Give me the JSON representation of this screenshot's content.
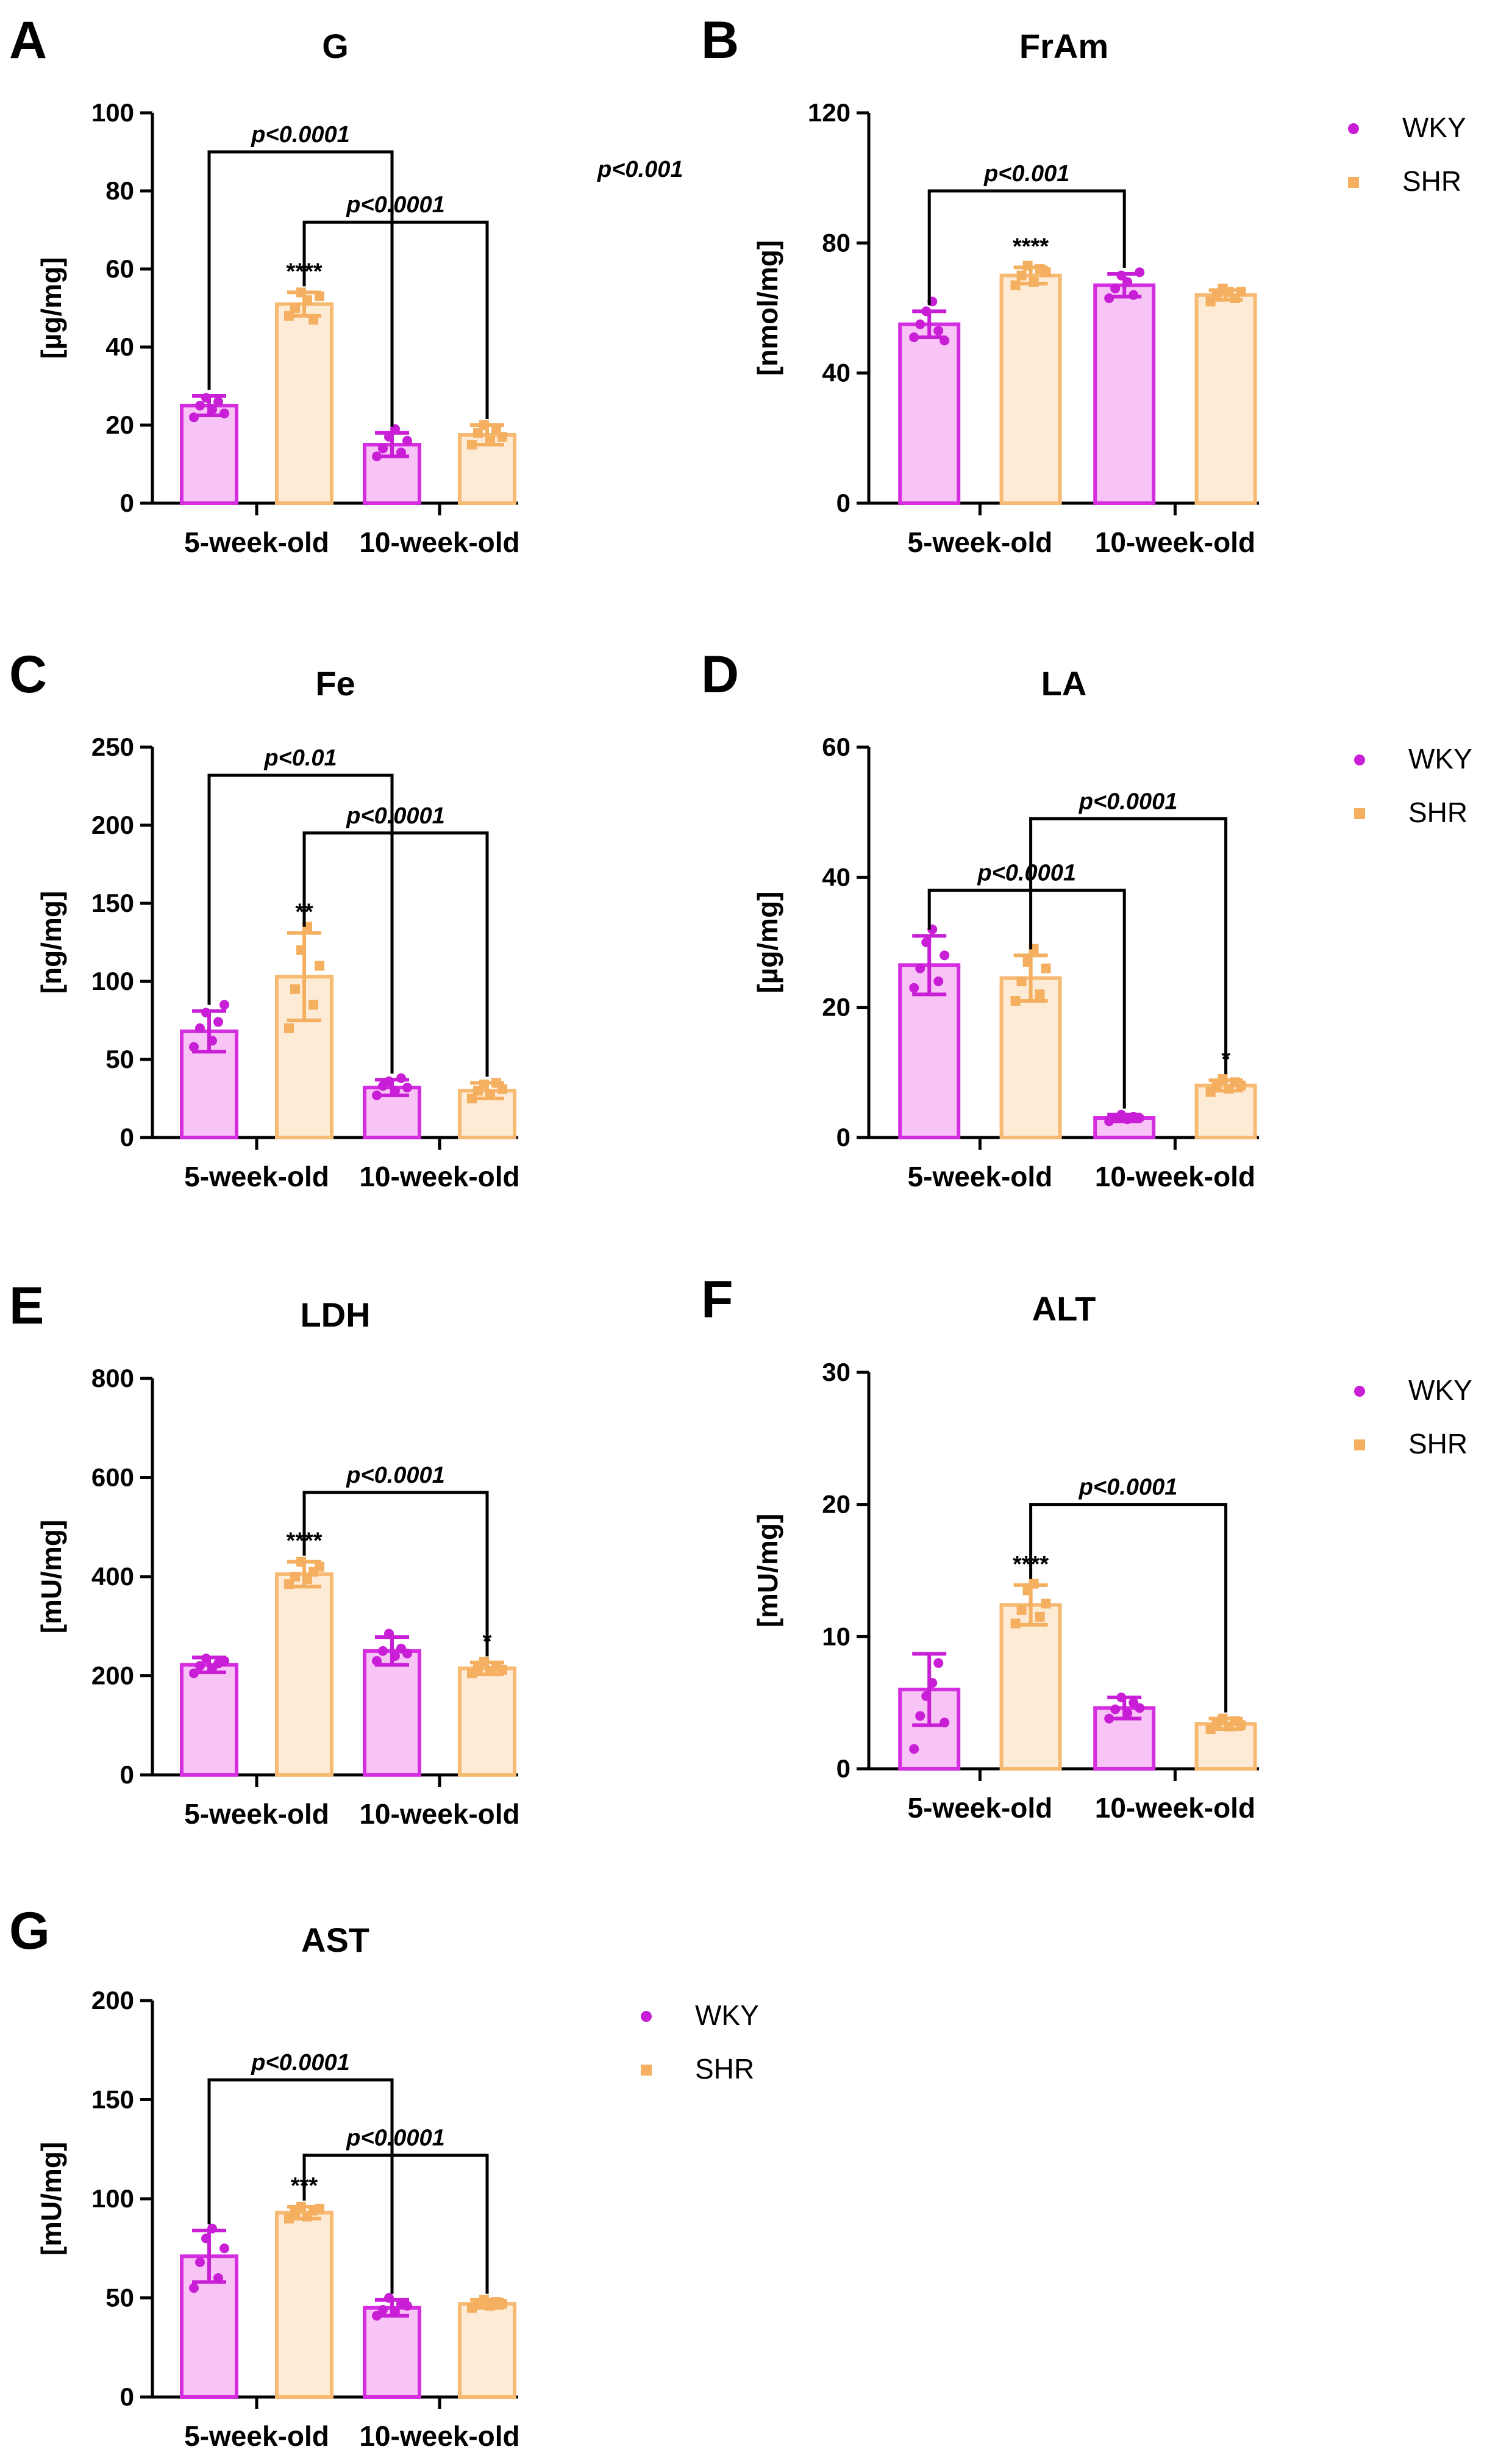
{
  "colors": {
    "WKY": {
      "stroke": "#d42ee0",
      "fill": "#f8c4f6",
      "marker": "#c81fd6"
    },
    "SHR": {
      "stroke": "#f6ba72",
      "fill": "#fdebd6",
      "marker": "#f4b060"
    },
    "axis": "#000000"
  },
  "legend": {
    "entries": [
      "WKY",
      "SHR"
    ]
  },
  "stray_text": "p<0.001",
  "chart_data": [
    {
      "panel": "A",
      "title": "G",
      "ylabel": "[µg/mg]",
      "type": "bar",
      "categories": [
        "5-week-old",
        "10-week-old"
      ],
      "ylim": [
        0,
        100
      ],
      "yticks": [
        "0",
        "20",
        "40",
        "60",
        "80",
        "100"
      ],
      "series": [
        {
          "name": "WKY",
          "values": [
            25,
            15
          ],
          "sd": [
            2.5,
            3
          ]
        },
        {
          "name": "SHR",
          "values": [
            51,
            17.5
          ],
          "sd": [
            3,
            2.5
          ]
        }
      ],
      "points": {
        "WKY": [
          [
            22,
            25,
            27,
            24,
            26,
            23
          ],
          [
            12,
            14,
            17,
            19,
            13,
            16
          ]
        ],
        "SHR": [
          [
            48,
            50,
            54,
            52,
            47,
            53
          ],
          [
            15,
            18,
            20,
            16,
            19,
            17
          ]
        ]
      },
      "stars": [
        {
          "series": "SHR",
          "cat": 0,
          "text": "****"
        }
      ],
      "brackets": [
        {
          "from": [
            0,
            "WKY"
          ],
          "to": [
            1,
            "WKY"
          ],
          "text": "p<0.0001",
          "y": 90
        },
        {
          "from": [
            0,
            "SHR"
          ],
          "to": [
            1,
            "SHR"
          ],
          "text": "p<0.0001",
          "y": 72
        }
      ]
    },
    {
      "panel": "B",
      "title": "FrAm",
      "ylabel": "[nmol/mg]",
      "type": "bar",
      "categories": [
        "5-week-old",
        "10-week-old"
      ],
      "ylim": [
        0,
        120
      ],
      "yticks": [
        "0",
        "40",
        "80",
        "120"
      ],
      "series": [
        {
          "name": "WKY",
          "values": [
            55,
            67
          ],
          "sd": [
            4,
            3.5
          ]
        },
        {
          "name": "SHR",
          "values": [
            70,
            64
          ],
          "sd": [
            2.5,
            1.5
          ]
        }
      ],
      "points": {
        "WKY": [
          [
            51,
            55,
            59,
            62,
            53,
            50
          ],
          [
            63,
            66,
            70,
            68,
            64,
            71
          ]
        ],
        "SHR": [
          [
            67,
            70,
            73,
            68,
            72,
            71
          ],
          [
            62,
            64,
            66,
            65,
            63,
            65
          ]
        ]
      },
      "stars": [
        {
          "series": "SHR",
          "cat": 0,
          "text": "****"
        }
      ],
      "brackets": [
        {
          "from": [
            0,
            "WKY"
          ],
          "to": [
            1,
            "WKY"
          ],
          "text": "p<0.001",
          "y": 96
        }
      ]
    },
    {
      "panel": "C",
      "title": "Fe",
      "ylabel": "[ng/mg]",
      "type": "bar",
      "categories": [
        "5-week-old",
        "10-week-old"
      ],
      "ylim": [
        0,
        250
      ],
      "yticks": [
        "0",
        "50",
        "100",
        "150",
        "200",
        "250"
      ],
      "series": [
        {
          "name": "WKY",
          "values": [
            68,
            32
          ],
          "sd": [
            13,
            5
          ]
        },
        {
          "name": "SHR",
          "values": [
            103,
            30
          ],
          "sd": [
            28,
            5
          ]
        }
      ],
      "points": {
        "WKY": [
          [
            58,
            70,
            80,
            62,
            74,
            85
          ],
          [
            27,
            33,
            36,
            30,
            38,
            32
          ]
        ],
        "SHR": [
          [
            70,
            95,
            120,
            135,
            85,
            110
          ],
          [
            25,
            30,
            34,
            28,
            35,
            31
          ]
        ]
      },
      "stars": [
        {
          "series": "SHR",
          "cat": 0,
          "text": "**"
        }
      ],
      "brackets": [
        {
          "from": [
            0,
            "WKY"
          ],
          "to": [
            1,
            "WKY"
          ],
          "text": "p<0.01",
          "y": 232
        },
        {
          "from": [
            0,
            "SHR"
          ],
          "to": [
            1,
            "SHR"
          ],
          "text": "p<0.0001",
          "y": 195
        }
      ]
    },
    {
      "panel": "D",
      "title": "LA",
      "ylabel": "[µg/mg]",
      "type": "bar",
      "categories": [
        "5-week-old",
        "10-week-old"
      ],
      "ylim": [
        0,
        60
      ],
      "yticks": [
        "0",
        "20",
        "40",
        "60"
      ],
      "series": [
        {
          "name": "WKY",
          "values": [
            26.5,
            3
          ],
          "sd": [
            4.5,
            0.5
          ]
        },
        {
          "name": "SHR",
          "values": [
            24.5,
            8
          ],
          "sd": [
            3.5,
            0.8
          ]
        }
      ],
      "points": {
        "WKY": [
          [
            23,
            26,
            30,
            32,
            24,
            28
          ],
          [
            2.5,
            3,
            3.5,
            2.8,
            3.2,
            3
          ]
        ],
        "SHR": [
          [
            21,
            24,
            27,
            29,
            22,
            26
          ],
          [
            7,
            8,
            9,
            7.5,
            8.5,
            8
          ]
        ]
      },
      "stars": [
        {
          "series": "SHR",
          "cat": 1,
          "text": "*"
        }
      ],
      "brackets": [
        {
          "from": [
            0,
            "WKY"
          ],
          "to": [
            1,
            "WKY"
          ],
          "text": "p<0.0001",
          "y": 38
        },
        {
          "from": [
            0,
            "SHR"
          ],
          "to": [
            1,
            "SHR"
          ],
          "text": "p<0.0001",
          "y": 49
        }
      ]
    },
    {
      "panel": "E",
      "title": "LDH",
      "ylabel": "[mU/mg]",
      "type": "bar",
      "categories": [
        "5-week-old",
        "10-week-old"
      ],
      "ylim": [
        0,
        800
      ],
      "yticks": [
        "0",
        "200",
        "400",
        "600",
        "800"
      ],
      "series": [
        {
          "name": "WKY",
          "values": [
            222,
            250
          ],
          "sd": [
            15,
            28
          ]
        },
        {
          "name": "SHR",
          "values": [
            405,
            215
          ],
          "sd": [
            25,
            12
          ]
        }
      ],
      "points": {
        "WKY": [
          [
            205,
            220,
            235,
            215,
            225,
            230
          ],
          [
            230,
            250,
            285,
            240,
            255,
            245
          ]
        ],
        "SHR": [
          [
            385,
            400,
            430,
            395,
            410,
            420
          ],
          [
            205,
            215,
            228,
            210,
            218,
            212
          ]
        ]
      },
      "stars": [
        {
          "series": "SHR",
          "cat": 0,
          "text": "****"
        },
        {
          "series": "SHR",
          "cat": 1,
          "text": "*"
        }
      ],
      "brackets": [
        {
          "from": [
            0,
            "SHR"
          ],
          "to": [
            1,
            "SHR"
          ],
          "text": "p<0.0001",
          "y": 570
        }
      ]
    },
    {
      "panel": "F",
      "title": "ALT",
      "ylabel": "[mU/mg]",
      "type": "bar",
      "categories": [
        "5-week-old",
        "10-week-old"
      ],
      "ylim": [
        0,
        30
      ],
      "yticks": [
        "0",
        "10",
        "20",
        "30"
      ],
      "series": [
        {
          "name": "WKY",
          "values": [
            6,
            4.6
          ],
          "sd": [
            2.7,
            0.8
          ]
        },
        {
          "name": "SHR",
          "values": [
            12.4,
            3.4
          ],
          "sd": [
            1.5,
            0.4
          ]
        }
      ],
      "points": {
        "WKY": [
          [
            1.5,
            4,
            5.5,
            6.5,
            8,
            3.5
          ],
          [
            3.8,
            4.5,
            5.4,
            4.2,
            5,
            4.6
          ]
        ],
        "SHR": [
          [
            11,
            12,
            13.5,
            14,
            11.5,
            12.5
          ],
          [
            3,
            3.4,
            3.8,
            3.2,
            3.6,
            3.3
          ]
        ]
      },
      "stars": [
        {
          "series": "SHR",
          "cat": 0,
          "text": "****"
        }
      ],
      "brackets": [
        {
          "from": [
            0,
            "SHR"
          ],
          "to": [
            1,
            "SHR"
          ],
          "text": "p<0.0001",
          "y": 20
        }
      ]
    },
    {
      "panel": "G",
      "title": "AST",
      "ylabel": "[mU/mg]",
      "type": "bar",
      "categories": [
        "5-week-old",
        "10-week-old"
      ],
      "ylim": [
        0,
        200
      ],
      "yticks": [
        "0",
        "50",
        "100",
        "150",
        "200"
      ],
      "series": [
        {
          "name": "WKY",
          "values": [
            71,
            45
          ],
          "sd": [
            13,
            4
          ]
        },
        {
          "name": "SHR",
          "values": [
            93,
            47
          ],
          "sd": [
            3,
            2
          ]
        }
      ],
      "points": {
        "WKY": [
          [
            55,
            68,
            80,
            85,
            60,
            75
          ],
          [
            41,
            44,
            50,
            43,
            47,
            46
          ]
        ],
        "SHR": [
          [
            90,
            93,
            96,
            91,
            94,
            95
          ],
          [
            45,
            47,
            49,
            46,
            48,
            47
          ]
        ]
      },
      "stars": [
        {
          "series": "SHR",
          "cat": 0,
          "text": "***"
        }
      ],
      "brackets": [
        {
          "from": [
            0,
            "WKY"
          ],
          "to": [
            1,
            "WKY"
          ],
          "text": "p<0.0001",
          "y": 160
        },
        {
          "from": [
            0,
            "SHR"
          ],
          "to": [
            1,
            "SHR"
          ],
          "text": "p<0.0001",
          "y": 122
        }
      ]
    }
  ]
}
